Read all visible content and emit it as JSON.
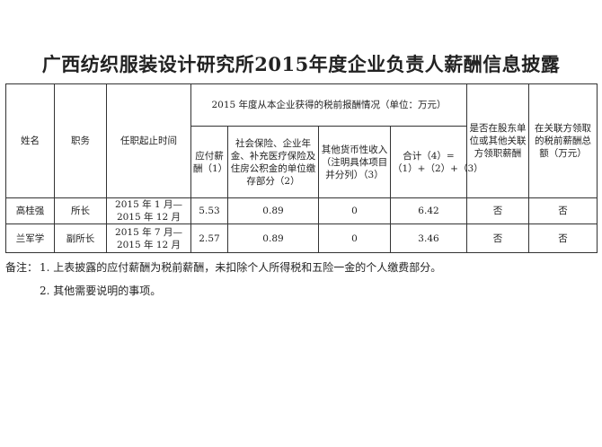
{
  "title": "广西纺织服装设计研究所2015年度企业负责人薪酬信息披露",
  "headers": {
    "name": "姓名",
    "position": "职务",
    "term": "任职起止时间",
    "group": "2015 年度从本企业获得的税前报酬情况（单位：万元）",
    "c1": "应付薪酬（1）",
    "c2": "社会保险、企业年金、补充医疗保险及住房公积金的单位缴存部分（2）",
    "c3": "其他货币性收入（注明具体项目并分列）（3）",
    "c4": "合计（4）=（1）+（2）+（3）",
    "c5": "是否在股东单位或其他关联方领职薪酬",
    "c6": "在关联方领取的税前薪酬总额（万元）"
  },
  "rows": [
    {
      "name": "高桂强",
      "position": "所长",
      "term": "2015 年 1 月—2015 年 12 月",
      "c1": "5.53",
      "c2": "0.89",
      "c3": "0",
      "c4": "6.42",
      "c5": "否",
      "c6": "否"
    },
    {
      "name": "兰军学",
      "position": "副所长",
      "term": "2015 年 7 月—2015 年 12 月",
      "c1": "2.57",
      "c2": "0.89",
      "c3": "0",
      "c4": "3.46",
      "c5": "否",
      "c6": "否"
    }
  ],
  "notes": {
    "label": "备注：",
    "n1": "1. 上表披露的应付薪酬为税前薪酬，未扣除个人所得税和五险一金的个人缴费部分。",
    "n2": "2. 其他需要说明的事项。"
  }
}
